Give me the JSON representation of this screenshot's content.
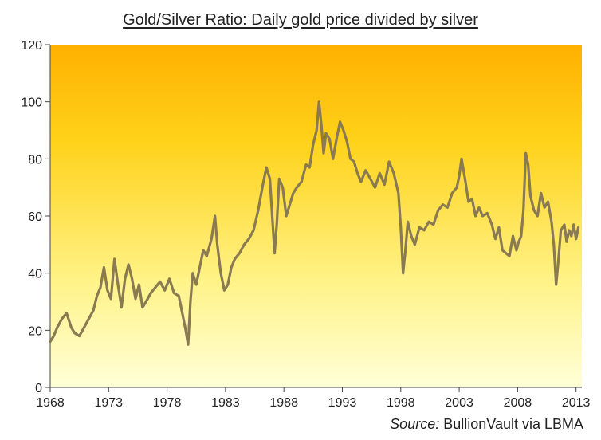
{
  "chart_data": {
    "type": "line",
    "title": "Gold/Silver Ratio: Daily gold price divided by silver",
    "source_prefix": "Source:",
    "source_text": "BullionVault via LBMA",
    "xlabel": "",
    "ylabel": "",
    "xlim": [
      1968,
      2013.5
    ],
    "ylim": [
      0,
      120
    ],
    "y_ticks": [
      0,
      20,
      40,
      60,
      80,
      100,
      120
    ],
    "x_ticks": [
      1968,
      1973,
      1978,
      1983,
      1988,
      1993,
      1998,
      2003,
      2008,
      2013
    ],
    "grid": false,
    "legend": "none",
    "background_gradient": [
      "#ffb000",
      "#ffd21a",
      "#fff38a",
      "#ffffd8"
    ],
    "series": [
      {
        "color": "#8a7a52",
        "x": [
          1968.0,
          1968.3,
          1968.6,
          1969.0,
          1969.4,
          1969.8,
          1970.1,
          1970.5,
          1970.9,
          1971.3,
          1971.7,
          1972.0,
          1972.3,
          1972.6,
          1972.9,
          1973.2,
          1973.5,
          1973.8,
          1974.1,
          1974.4,
          1974.7,
          1975.0,
          1975.3,
          1975.6,
          1975.9,
          1976.2,
          1976.6,
          1977.0,
          1977.4,
          1977.8,
          1978.2,
          1978.6,
          1979.0,
          1979.3,
          1979.6,
          1979.8,
          1980.0,
          1980.2,
          1980.5,
          1980.8,
          1981.1,
          1981.4,
          1981.8,
          1982.1,
          1982.3,
          1982.6,
          1982.9,
          1983.2,
          1983.5,
          1983.8,
          1984.2,
          1984.6,
          1985.0,
          1985.4,
          1985.8,
          1986.2,
          1986.5,
          1986.8,
          1987.0,
          1987.2,
          1987.4,
          1987.6,
          1987.9,
          1988.2,
          1988.5,
          1988.8,
          1989.1,
          1989.5,
          1989.9,
          1990.2,
          1990.5,
          1990.8,
          1991.0,
          1991.2,
          1991.4,
          1991.6,
          1991.9,
          1992.2,
          1992.5,
          1992.8,
          1993.1,
          1993.4,
          1993.7,
          1994.0,
          1994.3,
          1994.6,
          1995.0,
          1995.4,
          1995.8,
          1996.2,
          1996.6,
          1997.0,
          1997.4,
          1997.8,
          1998.0,
          1998.2,
          1998.4,
          1998.6,
          1998.9,
          1999.2,
          1999.6,
          2000.0,
          2000.4,
          2000.8,
          2001.2,
          2001.6,
          2002.0,
          2002.4,
          2002.8,
          2003.0,
          2003.2,
          2003.5,
          2003.8,
          2004.1,
          2004.4,
          2004.7,
          2005.0,
          2005.4,
          2005.8,
          2006.1,
          2006.4,
          2006.7,
          2007.0,
          2007.3,
          2007.6,
          2007.9,
          2008.1,
          2008.3,
          2008.5,
          2008.7,
          2008.9,
          2009.1,
          2009.4,
          2009.7,
          2010.0,
          2010.3,
          2010.6,
          2010.9,
          2011.1,
          2011.3,
          2011.5,
          2011.7,
          2012.0,
          2012.2,
          2012.4,
          2012.6,
          2012.8,
          2013.0,
          2013.2
        ],
        "values": [
          16,
          18,
          21,
          24,
          26,
          21,
          19,
          18,
          21,
          24,
          27,
          32,
          35,
          42,
          34,
          31,
          45,
          36,
          28,
          38,
          43,
          38,
          31,
          36,
          28,
          30,
          33,
          35,
          37,
          34,
          38,
          33,
          32,
          26,
          20,
          15,
          30,
          40,
          36,
          42,
          48,
          46,
          52,
          60,
          50,
          40,
          34,
          36,
          42,
          45,
          47,
          50,
          52,
          55,
          62,
          71,
          77,
          73,
          60,
          47,
          58,
          73,
          70,
          60,
          64,
          68,
          70,
          72,
          78,
          77,
          85,
          90,
          100,
          92,
          82,
          89,
          87,
          80,
          87,
          93,
          90,
          86,
          80,
          79,
          75,
          72,
          76,
          73,
          70,
          75,
          71,
          79,
          75,
          68,
          56,
          40,
          48,
          58,
          53,
          50,
          56,
          55,
          58,
          57,
          62,
          64,
          63,
          68,
          70,
          74,
          80,
          73,
          65,
          66,
          60,
          63,
          60,
          61,
          57,
          52,
          56,
          48,
          47,
          46,
          53,
          48,
          51,
          53,
          62,
          82,
          78,
          67,
          62,
          60,
          68,
          63,
          65,
          58,
          50,
          36,
          45,
          55,
          57,
          51,
          55,
          53,
          57,
          52,
          56
        ]
      }
    ]
  }
}
